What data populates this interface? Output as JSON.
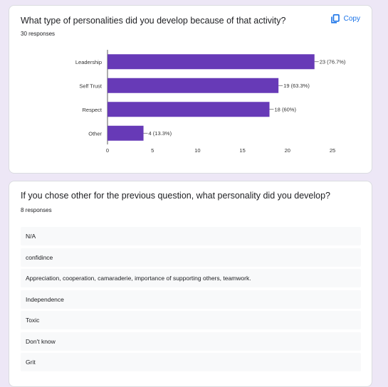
{
  "question1": {
    "title": "What type of personalities did you develop because of that activity?",
    "response_count": "30 responses",
    "copy_label": "Copy",
    "copy_icon": "copy-icon"
  },
  "chart_data": {
    "type": "bar",
    "orientation": "horizontal",
    "categories": [
      "Leadership",
      "Self Trust",
      "Respect",
      "Other"
    ],
    "values": [
      23,
      19,
      18,
      4
    ],
    "data_labels": [
      "23 (76.7%)",
      "19 (63.3%)",
      "18 (60%)",
      "4 (13.3%)"
    ],
    "xlim": [
      0,
      25
    ],
    "xticks": [
      0,
      5,
      10,
      15,
      20,
      25
    ],
    "bar_color": "#673ab7",
    "grid": false
  },
  "question2": {
    "title": "If you chose other for the previous question, what personality did you develop?",
    "response_count": "8 responses",
    "responses": [
      "N/A",
      "confidince",
      "Appreciation, cooperation, camaraderie, importance of supporting others, teamwork.",
      "Independence",
      "Toxic",
      "Don't know",
      "Grit"
    ]
  },
  "colors": {
    "background": "#ede7f6",
    "accent": "#1a73e8",
    "bar": "#673ab7",
    "response_bg": "#f8f9fa"
  }
}
